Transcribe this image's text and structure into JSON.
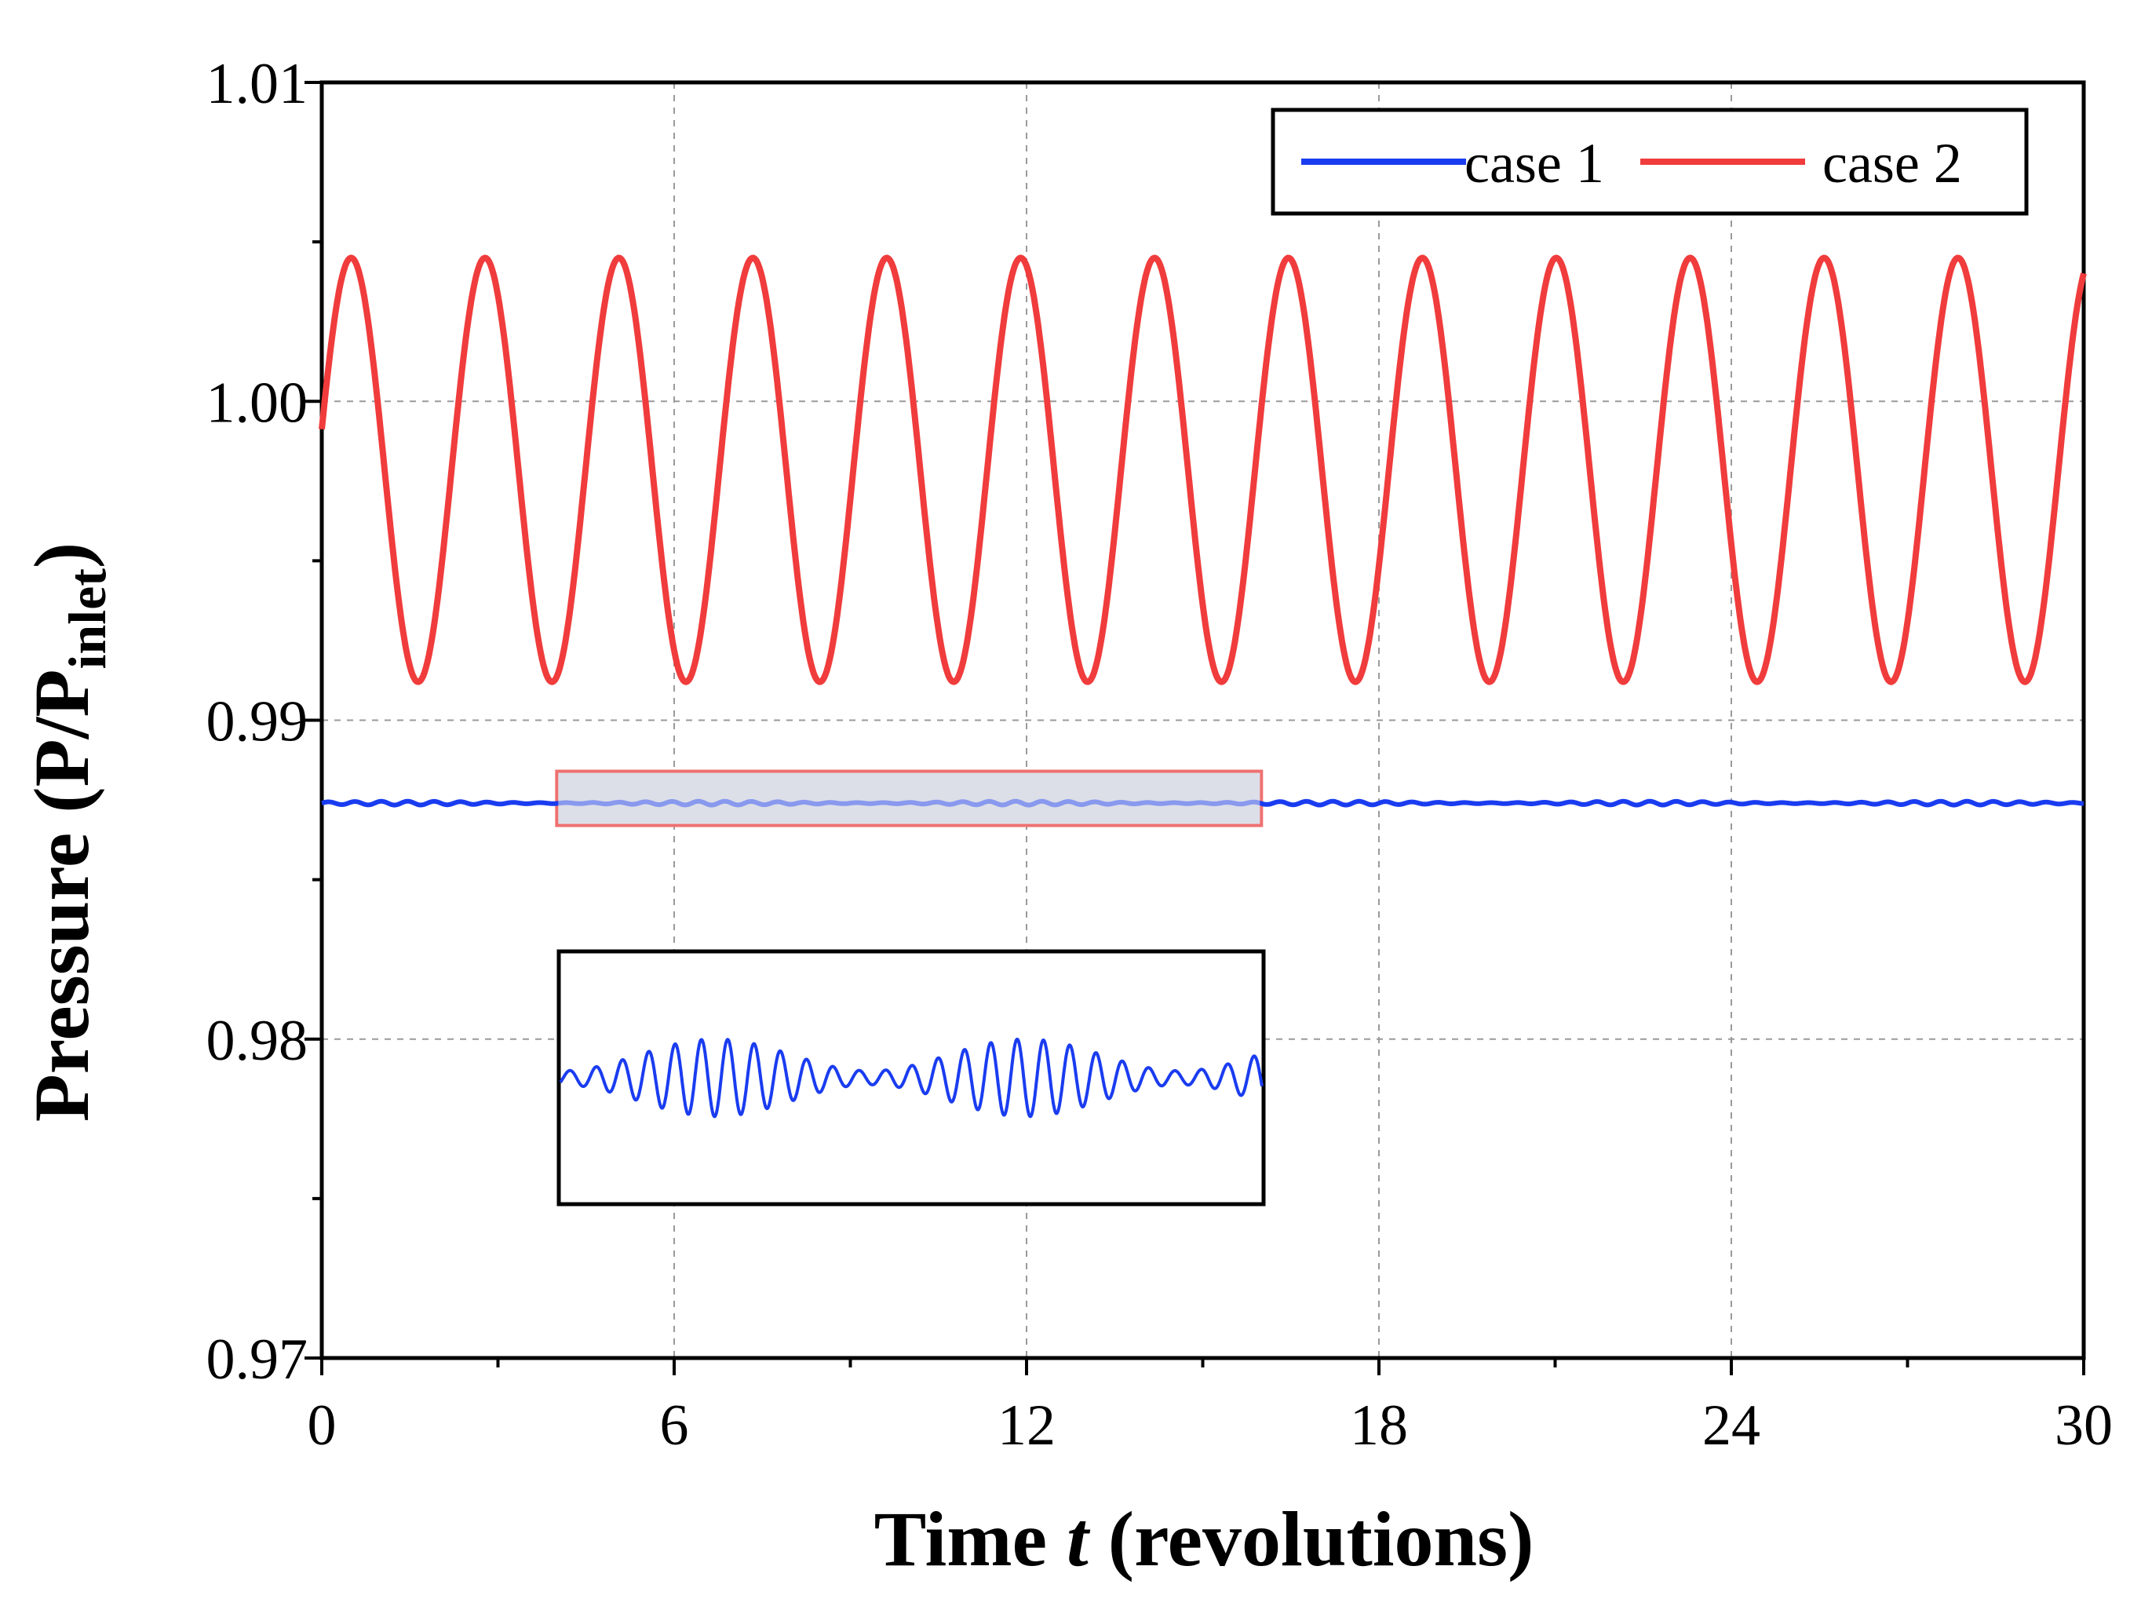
{
  "chart_data": {
    "type": "line",
    "title": "",
    "xlabel": {
      "prefix": "Time ",
      "var": "t",
      "suffix": " (revolutions)"
    },
    "ylabel": {
      "main": "Pressure (P/P",
      "sub": "inlet",
      "close": ")"
    },
    "xlim": [
      0,
      30
    ],
    "ylim": [
      0.97,
      1.01
    ],
    "xticks": [
      0,
      6,
      12,
      18,
      24,
      30
    ],
    "xtick_labels": [
      "0",
      "6",
      "12",
      "18",
      "24",
      "30"
    ],
    "yticks": [
      0.97,
      0.98,
      0.99,
      1.0,
      1.01
    ],
    "ytick_labels": [
      "0.97",
      "0.98",
      "0.99",
      "1.00",
      "1.01"
    ],
    "x_minor_step": 3,
    "y_minor_step": 0.005,
    "grid": true,
    "legend_position": "top-right",
    "series": [
      {
        "name": "case 1",
        "color": "#1a3cf0",
        "mean": 0.9874,
        "amplitude": 6e-05,
        "period": 0.45,
        "description_note": ""
      },
      {
        "name": "case 2",
        "color": "#f03c3c",
        "mean": 0.99785,
        "amplitude": 0.00665,
        "period": 2.28,
        "phase_x_peak": 0.5
      }
    ],
    "zoom_region": {
      "x_range": [
        4,
        16
      ],
      "y_range": [
        0.9867,
        0.9884
      ]
    },
    "inset": {
      "series": "case 1",
      "x_range": [
        4,
        16
      ],
      "beat_period": 5.3
    }
  },
  "colors": {
    "case1": "#1a3cf0",
    "case2": "#f03c3c",
    "highlight_fill": "#d3d8e2",
    "highlight_stroke": "#f07070",
    "grid": "#9a9a9a"
  }
}
